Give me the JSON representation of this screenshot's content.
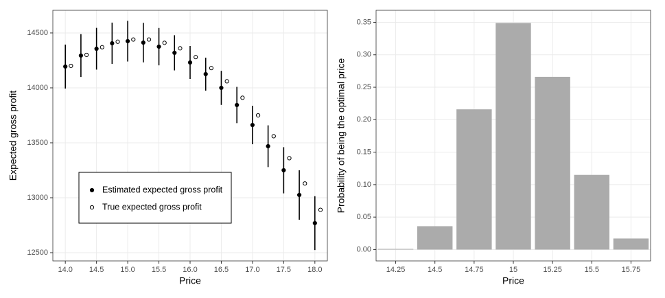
{
  "chart_data": [
    {
      "type": "errorbar-scatter",
      "x_label": "Price",
      "y_label": "Expected gross profit",
      "xlim": [
        13.8,
        18.2
      ],
      "ylim": [
        12425,
        14706
      ],
      "xticks": [
        {
          "value": 14,
          "label": "14.0"
        },
        {
          "value": 14.5,
          "label": "14.5"
        },
        {
          "value": 15,
          "label": "15.0"
        },
        {
          "value": 15.5,
          "label": "15.5"
        },
        {
          "value": 16,
          "label": "16.0"
        },
        {
          "value": 16.5,
          "label": "16.5"
        },
        {
          "value": 17,
          "label": "17.0"
        },
        {
          "value": 17.5,
          "label": "17.5"
        },
        {
          "value": 18,
          "label": "18.0"
        }
      ],
      "yticks": [
        12500,
        13000,
        13500,
        14000,
        14500
      ],
      "grid": true,
      "legend_position": "bottom-left",
      "series": [
        {
          "name": "Estimated expected gross profit",
          "marker": "filled",
          "color": "#000000",
          "x": [
            14,
            14.25,
            14.5,
            14.75,
            15,
            15.25,
            15.5,
            15.75,
            16,
            16.25,
            16.5,
            16.75,
            17,
            17.25,
            17.5,
            17.75,
            18
          ],
          "values": [
            14194,
            14294,
            14356,
            14406,
            14425,
            14412,
            14375,
            14319,
            14231,
            14125,
            14000,
            13844,
            13662,
            13469,
            13250,
            13025,
            12769
          ],
          "errors": [
            200,
            195,
            190,
            188,
            185,
            180,
            170,
            160,
            150,
            150,
            155,
            165,
            175,
            190,
            210,
            225,
            245
          ]
        },
        {
          "name": "True expected gross profit",
          "marker": "open",
          "color": "#000000",
          "x": [
            14.09,
            14.34,
            14.59,
            14.84,
            15.09,
            15.34,
            15.59,
            15.84,
            16.09,
            16.34,
            16.59,
            16.84,
            17.09,
            17.34,
            17.59,
            17.84,
            18.09
          ],
          "values": [
            14200,
            14300,
            14370,
            14420,
            14440,
            14440,
            14410,
            14360,
            14280,
            14180,
            14060,
            13910,
            13750,
            13560,
            13360,
            13130,
            12890
          ]
        }
      ]
    },
    {
      "type": "bar",
      "x_label": "Price",
      "y_label": "Probability of being the optimal price",
      "categories": [
        "14.25",
        "14.5",
        "14.75",
        "15",
        "15.25",
        "15.5",
        "15.75"
      ],
      "values": [
        0.001,
        0.036,
        0.216,
        0.349,
        0.266,
        0.115,
        0.017
      ],
      "color": "#ababab",
      "ylim": [
        -0.0175,
        0.3685
      ],
      "yticks": [
        {
          "value": 0,
          "label": "0.00"
        },
        {
          "value": 0.05,
          "label": "0.05"
        },
        {
          "value": 0.1,
          "label": "0.10"
        },
        {
          "value": 0.15,
          "label": "0.15"
        },
        {
          "value": 0.2,
          "label": "0.20"
        },
        {
          "value": 0.25,
          "label": "0.25"
        },
        {
          "value": 0.3,
          "label": "0.30"
        },
        {
          "value": 0.35,
          "label": "0.35"
        }
      ],
      "grid": true
    }
  ]
}
